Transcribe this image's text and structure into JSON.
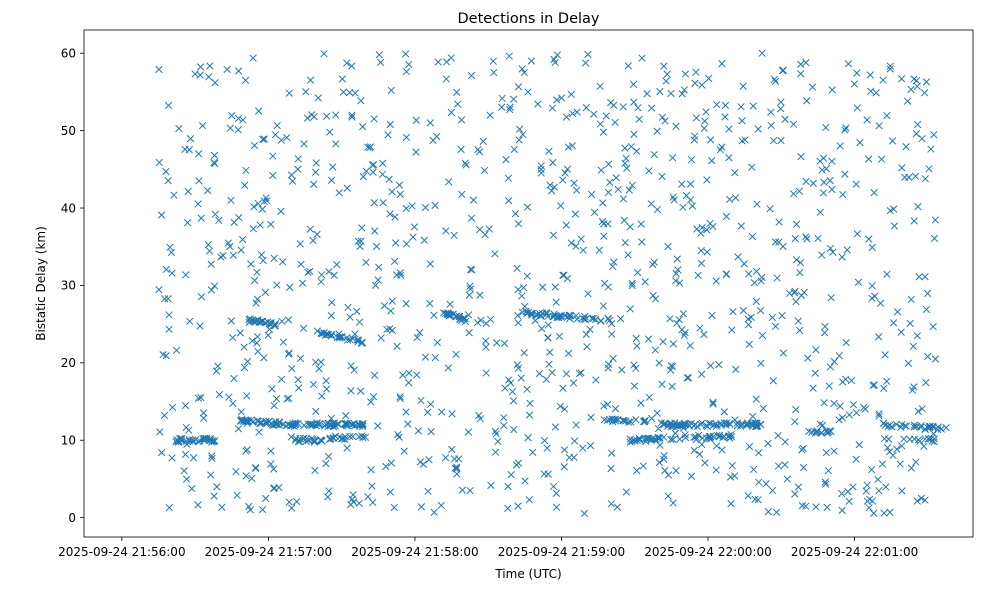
{
  "chart_data": {
    "type": "scatter",
    "title": "Detections in Delay",
    "xlabel": "Time (UTC)",
    "ylabel": "Bistatic Delay (km)",
    "marker": "x",
    "color": "#1f77b4",
    "xlim_seconds": [
      -15.5,
      348.5
    ],
    "ylim": [
      -2.5,
      63
    ],
    "x_origin": "2025-09-24 21:56:00",
    "x_ticks": [
      {
        "seconds": 0,
        "label": "2025-09-24 21:56:00"
      },
      {
        "seconds": 60,
        "label": "2025-09-24 21:57:00"
      },
      {
        "seconds": 120,
        "label": "2025-09-24 21:58:00"
      },
      {
        "seconds": 180,
        "label": "2025-09-24 21:59:00"
      },
      {
        "seconds": 240,
        "label": "2025-09-24 22:00:00"
      },
      {
        "seconds": 300,
        "label": "2025-09-24 22:01:00"
      }
    ],
    "y_ticks": [
      0,
      10,
      20,
      30,
      40,
      50,
      60
    ],
    "generation": {
      "time_range_seconds": [
        14.5,
        333.5
      ],
      "background_count": 1100,
      "background_delay_range": [
        0.5,
        60
      ],
      "tracks": [
        {
          "t": [
            22,
            40
          ],
          "delay": [
            10.0,
            10.0
          ],
          "count": 30
        },
        {
          "t": [
            48,
            70
          ],
          "delay": [
            12.5,
            12.0
          ],
          "count": 40
        },
        {
          "t": [
            52,
            63
          ],
          "delay": [
            25.5,
            25.0
          ],
          "count": 25
        },
        {
          "t": [
            70,
            100
          ],
          "delay": [
            12.0,
            12.0
          ],
          "count": 55
        },
        {
          "t": [
            70,
            80
          ],
          "delay": [
            10.0,
            10.0
          ],
          "count": 15
        },
        {
          "t": [
            78,
            100
          ],
          "delay": [
            10.0,
            10.5
          ],
          "count": 20
        },
        {
          "t": [
            80,
            100
          ],
          "delay": [
            24.0,
            22.5
          ],
          "count": 25
        },
        {
          "t": [
            131,
            141
          ],
          "delay": [
            26.5,
            25.5
          ],
          "count": 25
        },
        {
          "t": [
            162,
            200
          ],
          "delay": [
            26.5,
            25.5
          ],
          "count": 45
        },
        {
          "t": [
            196,
            215
          ],
          "delay": [
            12.5,
            12.5
          ],
          "count": 18
        },
        {
          "t": [
            208,
            250
          ],
          "delay": [
            10.0,
            10.5
          ],
          "count": 50
        },
        {
          "t": [
            220,
            262
          ],
          "delay": [
            12.0,
            12.0
          ],
          "count": 70
        },
        {
          "t": [
            281,
            291
          ],
          "delay": [
            11.0,
            11.0
          ],
          "count": 15
        },
        {
          "t": [
            310,
            338
          ],
          "delay": [
            12.0,
            11.5
          ],
          "count": 28
        },
        {
          "t": [
            320,
            333
          ],
          "delay": [
            10.0,
            10.0
          ],
          "count": 12
        }
      ]
    }
  }
}
